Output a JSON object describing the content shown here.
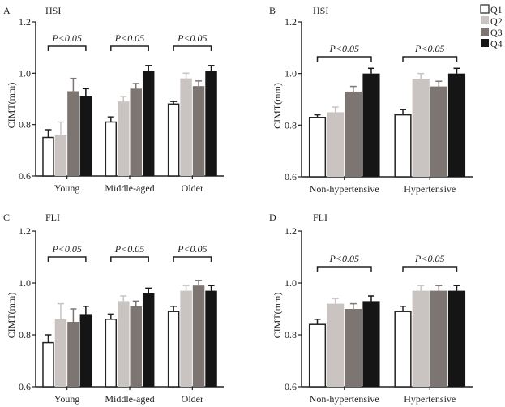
{
  "legend": [
    {
      "label": "Q1",
      "color": "#ffffff"
    },
    {
      "label": "Q2",
      "color": "#c9c4c1"
    },
    {
      "label": "Q3",
      "color": "#7c7572"
    },
    {
      "label": "Q4",
      "color": "#151515"
    }
  ],
  "chart_data": [
    {
      "type": "bar",
      "panel": "A",
      "title": "HSI",
      "ylabel": "CIMT(mm)",
      "ylim": [
        0.6,
        1.2
      ],
      "yticks": [
        "0.6",
        "0.8",
        "1.0",
        "1.2"
      ],
      "categories": [
        "Young",
        "Middle-aged",
        "Older"
      ],
      "series": [
        {
          "name": "Q1",
          "values": [
            0.75,
            0.81,
            0.88
          ],
          "error_upper": [
            0.78,
            0.83,
            0.89
          ]
        },
        {
          "name": "Q2",
          "values": [
            0.76,
            0.89,
            0.98
          ],
          "error_upper": [
            0.81,
            0.91,
            1.0
          ]
        },
        {
          "name": "Q3",
          "values": [
            0.93,
            0.94,
            0.95
          ],
          "error_upper": [
            0.98,
            0.96,
            0.97
          ]
        },
        {
          "name": "Q4",
          "values": [
            0.91,
            1.01,
            1.01
          ],
          "error_upper": [
            0.94,
            1.03,
            1.03
          ]
        }
      ],
      "annotations": [
        "P<0.05",
        "P<0.05",
        "P<0.05"
      ]
    },
    {
      "type": "bar",
      "panel": "B",
      "title": "HSI",
      "ylabel": "CIMT(mm)",
      "ylim": [
        0.6,
        1.2
      ],
      "yticks": [
        "0.6",
        "0.8",
        "1.0",
        "1.2"
      ],
      "categories": [
        "Non-hypertensive",
        "Hypertensive"
      ],
      "series": [
        {
          "name": "Q1",
          "values": [
            0.83,
            0.84
          ],
          "error_upper": [
            0.84,
            0.86
          ]
        },
        {
          "name": "Q2",
          "values": [
            0.85,
            0.98
          ],
          "error_upper": [
            0.87,
            1.0
          ]
        },
        {
          "name": "Q3",
          "values": [
            0.93,
            0.95
          ],
          "error_upper": [
            0.95,
            0.97
          ]
        },
        {
          "name": "Q4",
          "values": [
            1.0,
            1.0
          ],
          "error_upper": [
            1.02,
            1.02
          ]
        }
      ],
      "annotations": [
        "P<0.05",
        "P<0.05"
      ]
    },
    {
      "type": "bar",
      "panel": "C",
      "title": "FLI",
      "ylabel": "CIMT(mm)",
      "ylim": [
        0.6,
        1.2
      ],
      "yticks": [
        "0.6",
        "0.8",
        "1.0",
        "1.2"
      ],
      "categories": [
        "Young",
        "Middle-aged",
        "Older"
      ],
      "series": [
        {
          "name": "Q1",
          "values": [
            0.77,
            0.86,
            0.89
          ],
          "error_upper": [
            0.8,
            0.88,
            0.91
          ]
        },
        {
          "name": "Q2",
          "values": [
            0.86,
            0.93,
            0.97
          ],
          "error_upper": [
            0.92,
            0.95,
            0.99
          ]
        },
        {
          "name": "Q3",
          "values": [
            0.85,
            0.91,
            0.99
          ],
          "error_upper": [
            0.9,
            0.93,
            1.01
          ]
        },
        {
          "name": "Q4",
          "values": [
            0.88,
            0.96,
            0.97
          ],
          "error_upper": [
            0.91,
            0.98,
            0.99
          ]
        }
      ],
      "annotations": [
        "P<0.05",
        "P<0.05",
        "P<0.05"
      ]
    },
    {
      "type": "bar",
      "panel": "D",
      "title": "FLI",
      "ylabel": "CIMT(mm)",
      "ylim": [
        0.6,
        1.2
      ],
      "yticks": [
        "0.6",
        "0.8",
        "1.0",
        "1.2"
      ],
      "categories": [
        "Non-hypertensive",
        "Hypertensive"
      ],
      "series": [
        {
          "name": "Q1",
          "values": [
            0.84,
            0.89
          ],
          "error_upper": [
            0.86,
            0.91
          ]
        },
        {
          "name": "Q2",
          "values": [
            0.92,
            0.97
          ],
          "error_upper": [
            0.94,
            0.99
          ]
        },
        {
          "name": "Q3",
          "values": [
            0.9,
            0.97
          ],
          "error_upper": [
            0.92,
            0.99
          ]
        },
        {
          "name": "Q4",
          "values": [
            0.93,
            0.97
          ],
          "error_upper": [
            0.95,
            0.99
          ]
        }
      ],
      "annotations": [
        "P<0.05",
        "P<0.05"
      ]
    }
  ]
}
